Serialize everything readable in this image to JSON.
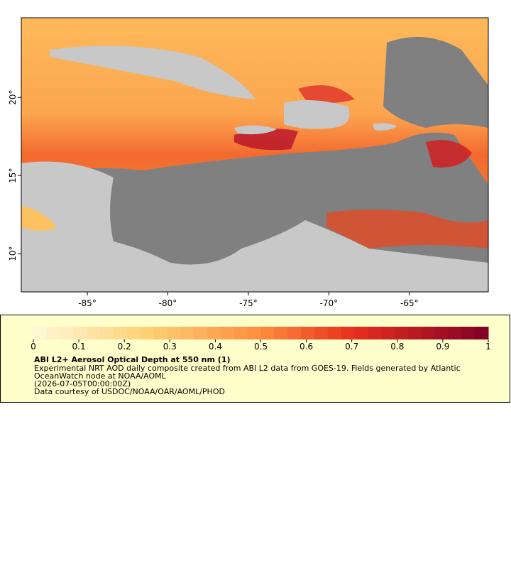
{
  "map": {
    "lonlim": [
      -89.1,
      -60.1
    ],
    "latlim": [
      7.55,
      25.1
    ],
    "lonticks": [
      {
        "value": -85,
        "label": "-85°"
      },
      {
        "value": -80,
        "label": "-80°"
      },
      {
        "value": -75,
        "label": "-75°"
      },
      {
        "value": -70,
        "label": "-70°"
      },
      {
        "value": -65,
        "label": "-65°"
      }
    ],
    "latticks": [
      {
        "value": 10,
        "label": "10°"
      },
      {
        "value": 15,
        "label": "15°"
      },
      {
        "value": 20,
        "label": "20°"
      }
    ],
    "colors": {
      "nodata": "#808080",
      "land": "#c8c8c8",
      "rivers": "#6fa0d0"
    }
  },
  "colorbar": {
    "lim": [
      0,
      1
    ],
    "ticks": [
      0,
      0.1,
      0.2,
      0.3,
      0.4,
      0.5,
      0.6,
      0.7,
      0.8,
      0.9,
      1
    ],
    "stops": [
      [
        0,
        "#fff8d8"
      ],
      [
        0.25,
        "#fed176"
      ],
      [
        0.5,
        "#fd8d3c"
      ],
      [
        0.7,
        "#e8301e"
      ],
      [
        1,
        "#7f0026"
      ]
    ]
  },
  "legend": {
    "title": "ABI L2+ Aerosol Optical Depth at 550 nm (1)",
    "lines": [
      "Experimental NRT AOD daily composite created from ABI L2 data from GOES-19. Fields generated by Atlantic",
      "OceanWatch node at NOAA/AOML",
      "(2026-07-05T00:00:00Z)",
      "Data courtesy of USDOC/NOAA/OAR/AOML/PHOD"
    ]
  }
}
